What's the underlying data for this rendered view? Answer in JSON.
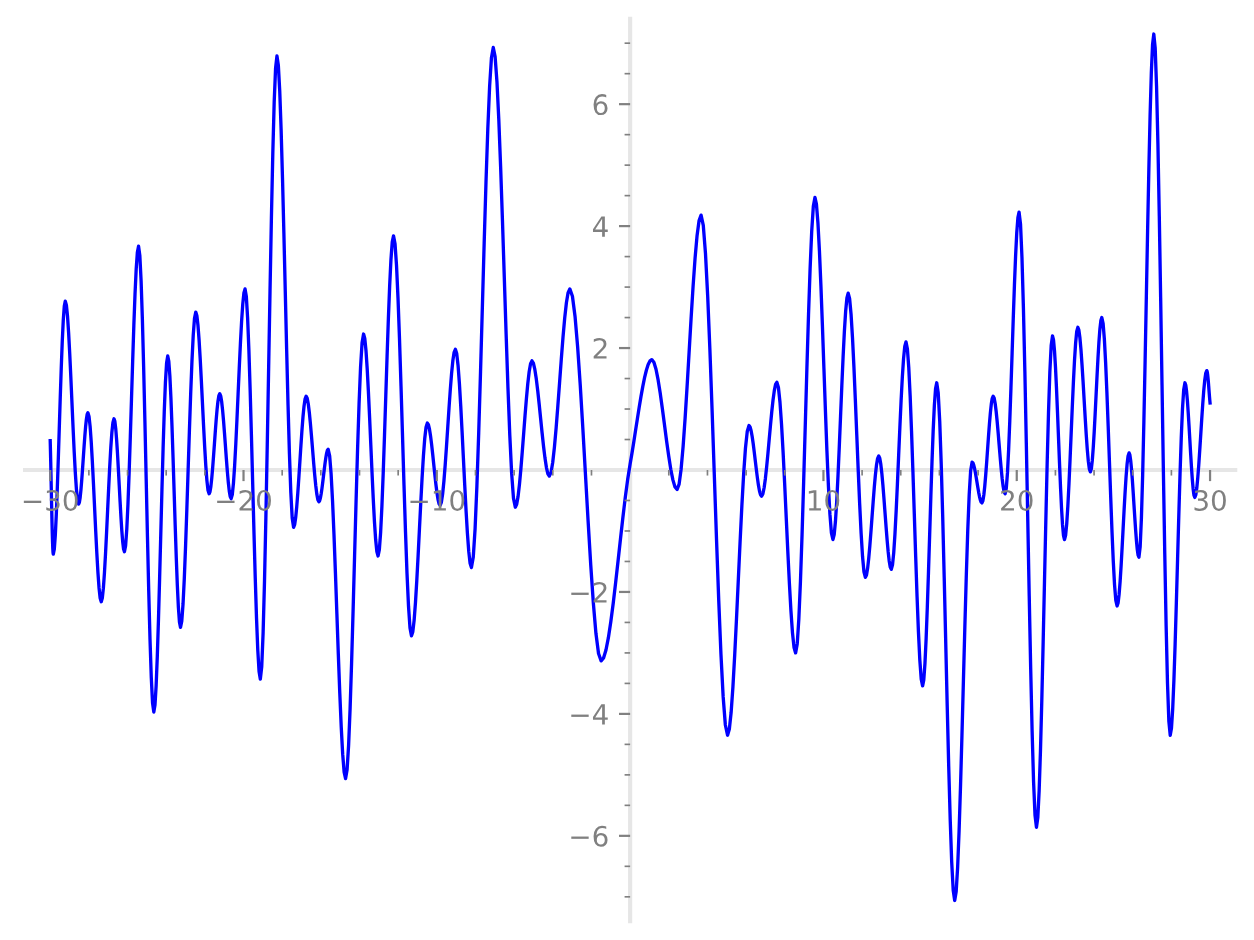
{
  "chart_data": {
    "type": "line",
    "grid": false,
    "marker": "none",
    "line_style": "solid",
    "xlim": [
      -31.3,
      31.3
    ],
    "ylim": [
      -7.4,
      7.4
    ],
    "xticks": [
      {
        "value": -30,
        "label": "−30"
      },
      {
        "value": -28,
        "label": null
      },
      {
        "value": -26,
        "label": null
      },
      {
        "value": -24,
        "label": null
      },
      {
        "value": -22,
        "label": null
      },
      {
        "value": -20,
        "label": "−20"
      },
      {
        "value": -18,
        "label": null
      },
      {
        "value": -16,
        "label": null
      },
      {
        "value": -14,
        "label": null
      },
      {
        "value": -12,
        "label": null
      },
      {
        "value": -10,
        "label": "−10"
      },
      {
        "value": -8,
        "label": null
      },
      {
        "value": -6,
        "label": null
      },
      {
        "value": -4,
        "label": null
      },
      {
        "value": -2,
        "label": null
      },
      {
        "value": 2,
        "label": null
      },
      {
        "value": 4,
        "label": null
      },
      {
        "value": 6,
        "label": null
      },
      {
        "value": 8,
        "label": null
      },
      {
        "value": 10,
        "label": "10"
      },
      {
        "value": 12,
        "label": null
      },
      {
        "value": 14,
        "label": null
      },
      {
        "value": 16,
        "label": null
      },
      {
        "value": 18,
        "label": null
      },
      {
        "value": 20,
        "label": "20"
      },
      {
        "value": 22,
        "label": null
      },
      {
        "value": 24,
        "label": null
      },
      {
        "value": 26,
        "label": null
      },
      {
        "value": 28,
        "label": null
      },
      {
        "value": 30,
        "label": "30"
      }
    ],
    "yticks": [
      {
        "value": -7,
        "label": null
      },
      {
        "value": -6.5,
        "label": null
      },
      {
        "value": -6,
        "label": "−6"
      },
      {
        "value": -5.5,
        "label": null
      },
      {
        "value": -5,
        "label": null
      },
      {
        "value": -4.5,
        "label": null
      },
      {
        "value": -4,
        "label": "−4"
      },
      {
        "value": -3.5,
        "label": null
      },
      {
        "value": -3,
        "label": null
      },
      {
        "value": -2.5,
        "label": null
      },
      {
        "value": -2,
        "label": "−2"
      },
      {
        "value": -1.5,
        "label": null
      },
      {
        "value": -1,
        "label": null
      },
      {
        "value": -0.5,
        "label": null
      },
      {
        "value": 0.5,
        "label": null
      },
      {
        "value": 1,
        "label": null
      },
      {
        "value": 1.5,
        "label": null
      },
      {
        "value": 2,
        "label": "2"
      },
      {
        "value": 2.5,
        "label": null
      },
      {
        "value": 3,
        "label": null
      },
      {
        "value": 3.5,
        "label": null
      },
      {
        "value": 4,
        "label": "4"
      },
      {
        "value": 4.5,
        "label": null
      },
      {
        "value": 5,
        "label": null
      },
      {
        "value": 5.5,
        "label": null
      },
      {
        "value": 6,
        "label": "6"
      },
      {
        "value": 6.5,
        "label": null
      },
      {
        "value": 7,
        "label": null
      }
    ],
    "series": [
      {
        "color": "#0000ff",
        "x": [
          -30.0,
          -29.84,
          -29.22,
          -28.53,
          -28.05,
          -27.36,
          -26.7,
          -26.16,
          -25.43,
          -24.64,
          -23.92,
          -23.26,
          -22.47,
          -21.78,
          -21.23,
          -20.64,
          -19.92,
          -19.13,
          -18.27,
          -17.41,
          -16.76,
          -16.1,
          -15.62,
          -14.72,
          -13.79,
          -13.04,
          -12.24,
          -11.31,
          -10.49,
          -9.83,
          -9.04,
          -8.21,
          -7.08,
          -5.94,
          -5.08,
          -4.18,
          -3.12,
          -1.5,
          0.0,
          1.12,
          2.43,
          3.67,
          5.04,
          6.15,
          6.8,
          7.59,
          8.56,
          9.56,
          10.49,
          11.28,
          12.17,
          12.86,
          13.51,
          14.27,
          15.13,
          15.86,
          16.79,
          17.69,
          18.2,
          18.78,
          19.4,
          20.12,
          21.02,
          21.85,
          22.47,
          23.16,
          23.81,
          24.4,
          25.19,
          25.81,
          26.32,
          27.09,
          27.94,
          28.7,
          29.21,
          29.83,
          30.0
        ],
        "values": [
          0.48,
          -1.38,
          2.77,
          -0.56,
          0.94,
          -2.16,
          0.84,
          -1.34,
          3.67,
          -3.97,
          1.87,
          -2.58,
          2.59,
          -0.39,
          1.25,
          -0.47,
          2.97,
          -3.43,
          6.79,
          -0.94,
          1.21,
          -0.52,
          0.34,
          -5.06,
          2.23,
          -1.41,
          3.84,
          -2.72,
          0.77,
          -0.58,
          1.98,
          -1.6,
          6.93,
          -0.61,
          1.79,
          -0.1,
          2.97,
          -3.13,
          0.1,
          1.81,
          -0.32,
          4.18,
          -4.35,
          0.73,
          -0.43,
          1.44,
          -3.0,
          4.47,
          -1.14,
          2.9,
          -1.76,
          0.23,
          -1.63,
          2.1,
          -3.54,
          1.43,
          -7.06,
          0.13,
          -0.54,
          1.21,
          -0.39,
          4.23,
          -5.86,
          2.2,
          -1.14,
          2.34,
          -0.03,
          2.5,
          -2.23,
          0.28,
          -1.43,
          7.15,
          -4.35,
          1.43,
          -0.45,
          1.63,
          1.1
        ]
      }
    ]
  }
}
